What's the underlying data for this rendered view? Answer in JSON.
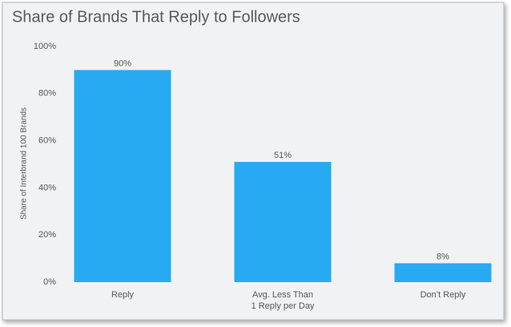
{
  "chart_data": {
    "type": "bar",
    "title": "Share of Brands That Reply to Followers",
    "y_label": "Share of Interbrand 100 Brands",
    "categories": [
      "Reply",
      "Avg. Less Than\n1 Reply per Day",
      "Don’t Reply"
    ],
    "values": [
      90,
      51,
      8
    ],
    "value_labels": [
      "90%",
      "51%",
      "8%"
    ],
    "color": "#27aaf2",
    "ylim": [
      0,
      100
    ],
    "yticks": [
      {
        "value": 0,
        "label": "0%"
      },
      {
        "value": 20,
        "label": "20%"
      },
      {
        "value": 40,
        "label": "40%"
      },
      {
        "value": 60,
        "label": "60%"
      },
      {
        "value": 80,
        "label": "80%"
      },
      {
        "value": 100,
        "label": "100%"
      }
    ],
    "grid": false
  }
}
